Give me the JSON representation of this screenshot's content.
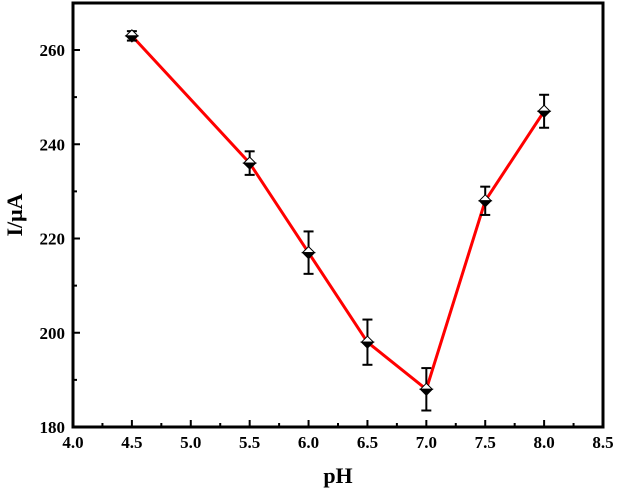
{
  "chart_data": {
    "type": "line",
    "title": "",
    "xlabel": "pH",
    "ylabel": "I/μA",
    "xlim": [
      4.0,
      8.5
    ],
    "ylim": [
      180,
      268
    ],
    "x_ticks": [
      "4.0",
      "4.5",
      "5.0",
      "5.5",
      "6.0",
      "6.5",
      "7.0",
      "7.5",
      "8.0",
      "8.5"
    ],
    "y_ticks": [
      "180",
      "200",
      "220",
      "240",
      "260"
    ],
    "grid": false,
    "legend": null,
    "series": [
      {
        "name": "I",
        "color": "#ff0000",
        "marker": "half-filled diamond",
        "x": [
          4.5,
          5.5,
          6.0,
          6.5,
          7.0,
          7.5,
          8.0
        ],
        "y": [
          263,
          236,
          217,
          198,
          188,
          228,
          247
        ],
        "error": [
          1.0,
          2.5,
          4.5,
          4.8,
          4.5,
          3.0,
          3.5
        ]
      }
    ]
  }
}
